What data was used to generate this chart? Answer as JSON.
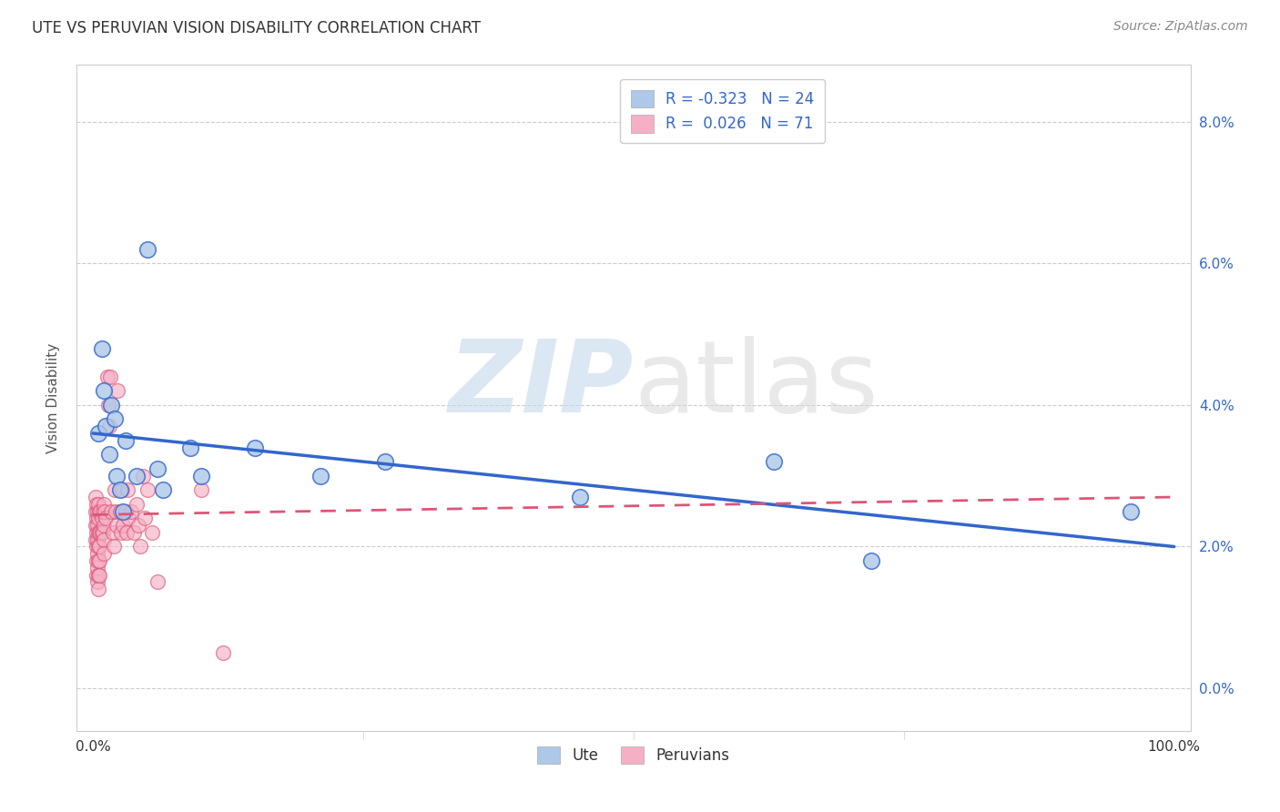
{
  "title": "UTE VS PERUVIAN VISION DISABILITY CORRELATION CHART",
  "source": "Source: ZipAtlas.com",
  "ylabel": "Vision Disability",
  "yticks": [
    0.0,
    0.02,
    0.04,
    0.06,
    0.08
  ],
  "ytick_labels": [
    "0.0%",
    "2.0%",
    "4.0%",
    "6.0%",
    "8.0%"
  ],
  "xlim": [
    -0.015,
    1.015
  ],
  "ylim": [
    -0.006,
    0.088
  ],
  "legend_ute_label": "R = -0.323   N = 24",
  "legend_peru_label": "R =  0.026   N = 71",
  "legend_bottom_ute": "Ute",
  "legend_bottom_peru": "Peruvians",
  "ute_color": "#adc8e8",
  "peru_color": "#f5b0c5",
  "ute_line_color": "#3366cc",
  "peru_line_color": "#dd5577",
  "background_color": "#ffffff",
  "grid_color": "#cccccc",
  "ute_x": [
    0.005,
    0.008,
    0.01,
    0.012,
    0.015,
    0.017,
    0.02,
    0.022,
    0.025,
    0.028,
    0.03,
    0.04,
    0.05,
    0.06,
    0.065,
    0.09,
    0.1,
    0.15,
    0.21,
    0.27,
    0.45,
    0.63,
    0.72,
    0.96
  ],
  "ute_y": [
    0.036,
    0.048,
    0.042,
    0.037,
    0.033,
    0.04,
    0.038,
    0.03,
    0.028,
    0.025,
    0.035,
    0.03,
    0.062,
    0.031,
    0.028,
    0.034,
    0.03,
    0.034,
    0.03,
    0.032,
    0.027,
    0.032,
    0.018,
    0.025
  ],
  "peru_x": [
    0.002,
    0.002,
    0.002,
    0.002,
    0.003,
    0.003,
    0.003,
    0.003,
    0.003,
    0.003,
    0.004,
    0.004,
    0.004,
    0.004,
    0.004,
    0.004,
    0.005,
    0.005,
    0.005,
    0.005,
    0.005,
    0.005,
    0.005,
    0.006,
    0.006,
    0.006,
    0.006,
    0.006,
    0.007,
    0.007,
    0.008,
    0.008,
    0.009,
    0.009,
    0.01,
    0.01,
    0.01,
    0.01,
    0.011,
    0.012,
    0.013,
    0.014,
    0.015,
    0.016,
    0.017,
    0.018,
    0.019,
    0.02,
    0.021,
    0.022,
    0.023,
    0.025,
    0.026,
    0.027,
    0.028,
    0.03,
    0.031,
    0.032,
    0.033,
    0.035,
    0.038,
    0.04,
    0.042,
    0.044,
    0.046,
    0.048,
    0.05,
    0.055,
    0.06,
    0.1,
    0.12
  ],
  "peru_y": [
    0.027,
    0.025,
    0.023,
    0.021,
    0.026,
    0.024,
    0.022,
    0.02,
    0.018,
    0.016,
    0.025,
    0.023,
    0.021,
    0.019,
    0.017,
    0.015,
    0.026,
    0.024,
    0.022,
    0.02,
    0.018,
    0.016,
    0.014,
    0.025,
    0.022,
    0.02,
    0.018,
    0.016,
    0.025,
    0.022,
    0.024,
    0.022,
    0.025,
    0.022,
    0.026,
    0.023,
    0.021,
    0.019,
    0.025,
    0.024,
    0.044,
    0.04,
    0.037,
    0.044,
    0.025,
    0.022,
    0.02,
    0.028,
    0.025,
    0.023,
    0.042,
    0.025,
    0.022,
    0.028,
    0.023,
    0.025,
    0.022,
    0.028,
    0.024,
    0.025,
    0.022,
    0.026,
    0.023,
    0.02,
    0.03,
    0.024,
    0.028,
    0.022,
    0.015,
    0.028,
    0.005
  ],
  "ute_line_x0": 0.0,
  "ute_line_y0": 0.036,
  "ute_line_x1": 1.0,
  "ute_line_y1": 0.02,
  "peru_line_x0": 0.0,
  "peru_line_y0": 0.0245,
  "peru_line_x1": 1.0,
  "peru_line_y1": 0.027
}
